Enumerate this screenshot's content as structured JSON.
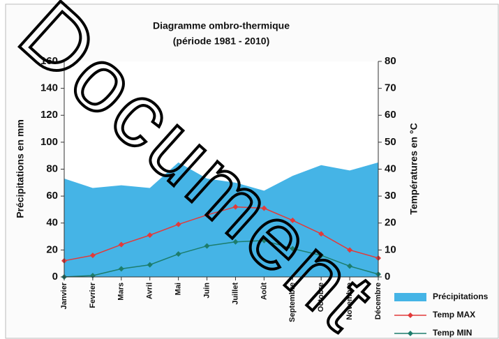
{
  "chart_data": {
    "type": "ombrothermic",
    "title": "Diagramme ombro-thermique",
    "subtitle": "(période 1981 - 2010)",
    "ylabel": "Précipitations en mm",
    "y2label": "Températures en °C",
    "watermark": "Document",
    "categories": [
      "Janvier",
      "Fevrier",
      "Mars",
      "Avril",
      "Mai",
      "Juin",
      "Juillet",
      "Août",
      "Septembre",
      "Octobre",
      "Novembre",
      "Décembre"
    ],
    "ylim": [
      0,
      160
    ],
    "yticks": [
      0,
      20,
      40,
      60,
      80,
      100,
      120,
      140,
      160
    ],
    "y2lim": [
      0,
      80
    ],
    "y2ticks": [
      0,
      10,
      20,
      30,
      40,
      50,
      60,
      70,
      80
    ],
    "series": [
      {
        "name": "Précipitations",
        "kind": "area",
        "color": "#45b4e6",
        "values": [
          73,
          66,
          68,
          66,
          85,
          73,
          70,
          64,
          75,
          83,
          79,
          85
        ]
      },
      {
        "name": "Temp MAX",
        "kind": "line",
        "axis": "y2",
        "color": "#e23a3a",
        "values": [
          6,
          8,
          12,
          15.5,
          19.5,
          23,
          26,
          25.5,
          21,
          16,
          10,
          7
        ]
      },
      {
        "name": "Temp MIN",
        "kind": "line",
        "axis": "y2",
        "color": "#1d7d6c",
        "values": [
          0,
          0.5,
          3,
          4.5,
          8.5,
          11.5,
          13,
          13.5,
          10.5,
          8,
          4,
          1
        ]
      }
    ]
  }
}
